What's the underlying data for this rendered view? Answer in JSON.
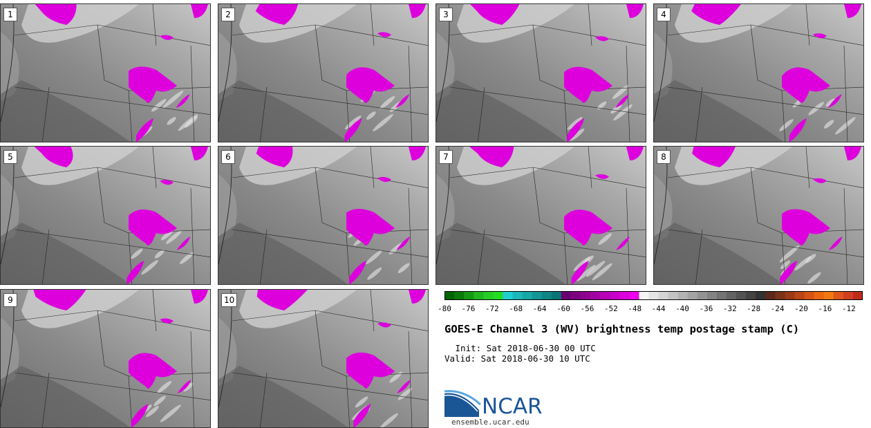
{
  "panels": [
    {
      "label": "1"
    },
    {
      "label": "2"
    },
    {
      "label": "3"
    },
    {
      "label": "4"
    },
    {
      "label": "5"
    },
    {
      "label": "6"
    },
    {
      "label": "7"
    },
    {
      "label": "8"
    },
    {
      "label": "9"
    },
    {
      "label": "10"
    }
  ],
  "colorbar": {
    "tick_labels": [
      "-80",
      "-76",
      "-72",
      "-68",
      "-64",
      "-60",
      "-56",
      "-52",
      "-48",
      "-44",
      "-40",
      "-36",
      "-32",
      "-28",
      "-24",
      "-20",
      "-16",
      "-12"
    ],
    "colors": [
      "#006400",
      "#0b7a0b",
      "#159915",
      "#1fb81f",
      "#27cc27",
      "#22dd22",
      "#1fcfcf",
      "#1ab8b8",
      "#18a7a7",
      "#139595",
      "#0e8585",
      "#0a7575",
      "#6a0070",
      "#7d007f",
      "#8f008f",
      "#a300a3",
      "#b700b7",
      "#c900c9",
      "#dc00dc",
      "#ee00ee",
      "#f4f4f4",
      "#e3e3e3",
      "#d3d3d3",
      "#c3c3c3",
      "#b3b3b3",
      "#a3a3a3",
      "#939393",
      "#838383",
      "#737373",
      "#636363",
      "#535353",
      "#434343",
      "#333333",
      "#5a2a1a",
      "#7a3218",
      "#9a3a16",
      "#b94616",
      "#d35414",
      "#ec6612",
      "#f07a10",
      "#e0551a",
      "#d04020",
      "#c02a18"
    ]
  },
  "title": "GOES-E Channel 3 (WV) brightness temp postage stamp (C)",
  "init_line": " Init: Sat 2018-06-30 00 UTC",
  "valid_line": "Valid: Sat 2018-06-30 10 UTC",
  "logo": {
    "text": "NCAR",
    "icon": "ncar-logo-icon"
  },
  "website": "ensemble.ucar.edu"
}
